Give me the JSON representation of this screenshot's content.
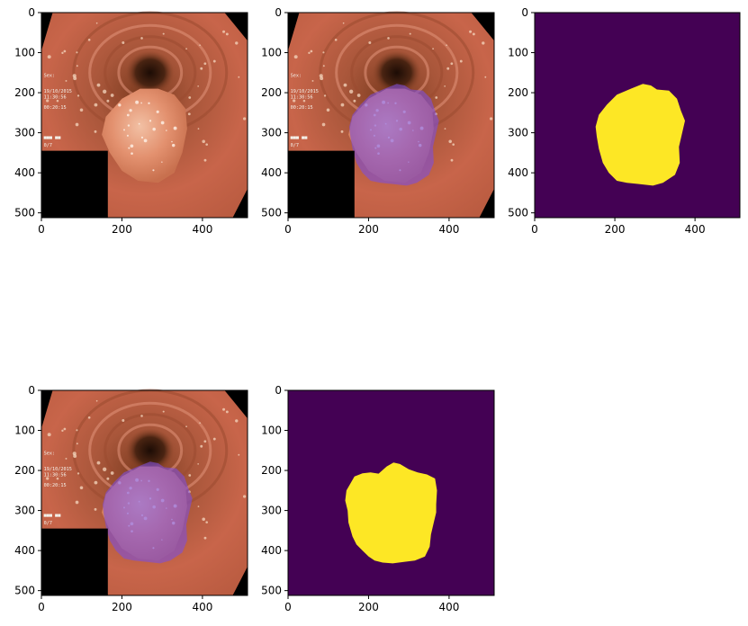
{
  "figure": {
    "background": "#ffffff",
    "panels": [
      {
        "id": "image",
        "kind": "photo",
        "overlay": false,
        "xticks": [
          "0",
          "200",
          "400"
        ],
        "yticks": [
          "0",
          "100",
          "200",
          "300",
          "400",
          "500"
        ]
      },
      {
        "id": "image_with_gt_overlay",
        "kind": "photo",
        "overlay": true,
        "overlay_color": "#7f4fd6",
        "xticks": [
          "0",
          "200",
          "400"
        ],
        "yticks": [
          "0",
          "100",
          "200",
          "300",
          "400",
          "500"
        ]
      },
      {
        "id": "ground_truth_mask",
        "kind": "mask",
        "mask_shape": "gt",
        "xticks": [
          "0",
          "200",
          "400"
        ],
        "yticks": [
          "0",
          "100",
          "200",
          "300",
          "400",
          "500"
        ]
      },
      {
        "id": "image_with_pred_overlay",
        "kind": "photo",
        "overlay": true,
        "overlay_color": "#7f4fd6",
        "xticks": [
          "0",
          "200",
          "400"
        ],
        "yticks": [
          "0",
          "100",
          "200",
          "300",
          "400",
          "500"
        ]
      },
      {
        "id": "predicted_mask",
        "kind": "mask",
        "mask_shape": "pred",
        "xticks": [
          "0",
          "200",
          "400"
        ],
        "yticks": [
          "0",
          "100",
          "200",
          "300",
          "400",
          "500"
        ]
      }
    ]
  },
  "image": {
    "osd_lines": [
      "Sex:",
      "19/10/2015",
      "11:30:56",
      "00:20:15",
      "■■■ ■■",
      "0/7"
    ]
  },
  "colors": {
    "mask_background": "#440154",
    "mask_foreground": "#fde725",
    "tissue": "#c8654a",
    "tissue_light": "#e59a7c",
    "lumen_dark": "#3a1c0e",
    "polyp": "#e3916f",
    "black": "#000000"
  }
}
